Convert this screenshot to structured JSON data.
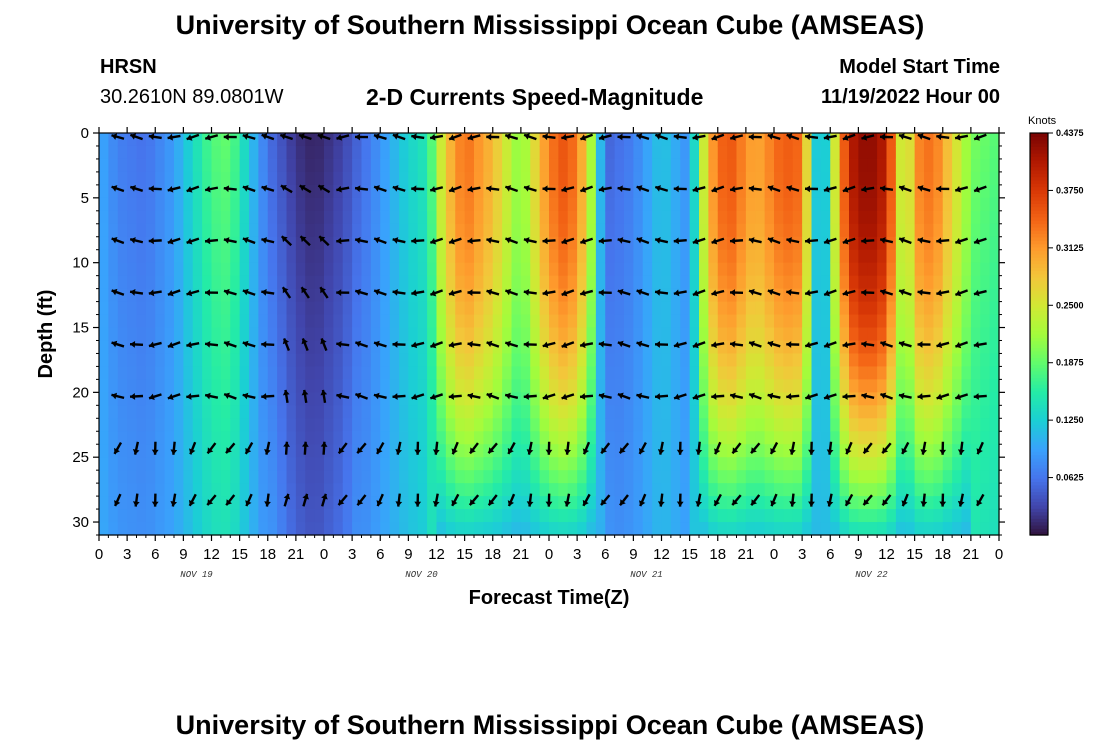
{
  "header": {
    "title": "University of Southern Mississippi Ocean Cube (AMSEAS)",
    "station": "HRSN",
    "coords": "30.2610N  89.0801W",
    "subtitle": "2-D Currents Speed-Magnitude",
    "model_label": "Model Start Time",
    "model_time": "11/19/2022 Hour 00"
  },
  "footer": {
    "title": "University of Southern Mississippi Ocean Cube (AMSEAS)"
  },
  "chart_data": {
    "type": "heatmap",
    "title": "2-D Currents Speed-Magnitude",
    "xlabel": "Forecast Time(Z)",
    "ylabel": "Depth (ft)",
    "x_range_hours": [
      0,
      96
    ],
    "ylim": [
      0,
      31
    ],
    "y_ticks": [
      "0",
      "5",
      "10",
      "15",
      "20",
      "25",
      "30"
    ],
    "x_tick_labels": [
      "0",
      "3",
      "6",
      "9",
      "12",
      "15",
      "18",
      "21",
      "0",
      "3",
      "6",
      "9",
      "12",
      "15",
      "18",
      "21",
      "0",
      "3",
      "6",
      "9",
      "12",
      "15",
      "18",
      "21",
      "0",
      "3",
      "6",
      "9",
      "12",
      "15",
      "18",
      "21",
      "0"
    ],
    "date_labels": [
      {
        "label": "NOV 19",
        "hour": 12
      },
      {
        "label": "NOV 20",
        "hour": 36
      },
      {
        "label": "NOV 21",
        "hour": 60
      },
      {
        "label": "NOV 22",
        "hour": 84
      }
    ],
    "colorbar": {
      "unit": "Knots",
      "min": 0.0,
      "max": 0.4375,
      "tick_labels": [
        "0.4375",
        "0.3750",
        "0.3125",
        "0.2500",
        "0.1875",
        "0.1250",
        "0.0625"
      ],
      "tick_values": [
        0.4375,
        0.375,
        0.3125,
        0.25,
        0.1875,
        0.125,
        0.0625
      ],
      "colors": [
        "#30123b",
        "#4145ab",
        "#4675ed",
        "#39a2fc",
        "#1bcfd4",
        "#24eca6",
        "#61fc6c",
        "#a4fc3b",
        "#d1e834",
        "#f3c63a",
        "#fe9b2d",
        "#f36315",
        "#d93806",
        "#b11901",
        "#7a0403"
      ]
    },
    "speed_profile_top_knots": [
      {
        "hour": 0,
        "value": 0.1
      },
      {
        "hour": 2,
        "value": 0.07
      },
      {
        "hour": 5,
        "value": 0.06
      },
      {
        "hour": 8,
        "value": 0.09
      },
      {
        "hour": 12,
        "value": 0.18
      },
      {
        "hour": 14,
        "value": 0.19
      },
      {
        "hour": 16,
        "value": 0.12
      },
      {
        "hour": 18,
        "value": 0.06
      },
      {
        "hour": 21,
        "value": 0.02
      },
      {
        "hour": 23,
        "value": 0.01
      },
      {
        "hour": 26,
        "value": 0.03
      },
      {
        "hour": 29,
        "value": 0.07
      },
      {
        "hour": 31,
        "value": 0.1
      },
      {
        "hour": 33,
        "value": 0.13
      },
      {
        "hour": 35,
        "value": 0.15
      },
      {
        "hour": 37,
        "value": 0.28
      },
      {
        "hour": 39,
        "value": 0.34
      },
      {
        "hour": 42,
        "value": 0.29
      },
      {
        "hour": 45,
        "value": 0.2
      },
      {
        "hour": 48,
        "value": 0.33
      },
      {
        "hour": 50,
        "value": 0.36
      },
      {
        "hour": 52,
        "value": 0.28
      },
      {
        "hour": 54,
        "value": 0.05
      },
      {
        "hour": 57,
        "value": 0.07
      },
      {
        "hour": 60,
        "value": 0.12
      },
      {
        "hour": 63,
        "value": 0.08
      },
      {
        "hour": 65,
        "value": 0.3
      },
      {
        "hour": 67,
        "value": 0.36
      },
      {
        "hour": 70,
        "value": 0.3
      },
      {
        "hour": 73,
        "value": 0.35
      },
      {
        "hour": 75,
        "value": 0.34
      },
      {
        "hour": 77,
        "value": 0.05
      },
      {
        "hour": 78,
        "value": 0.2
      },
      {
        "hour": 80,
        "value": 0.4
      },
      {
        "hour": 82,
        "value": 0.43
      },
      {
        "hour": 84,
        "value": 0.4
      },
      {
        "hour": 86,
        "value": 0.2
      },
      {
        "hour": 87,
        "value": 0.32
      },
      {
        "hour": 89,
        "value": 0.34
      },
      {
        "hour": 91,
        "value": 0.27
      },
      {
        "hour": 93,
        "value": 0.2
      },
      {
        "hour": 96,
        "value": 0.18
      }
    ],
    "vector_depths_ft": [
      0,
      4,
      8,
      12,
      16,
      20,
      24,
      28
    ],
    "vector_interval_hours": 2
  }
}
